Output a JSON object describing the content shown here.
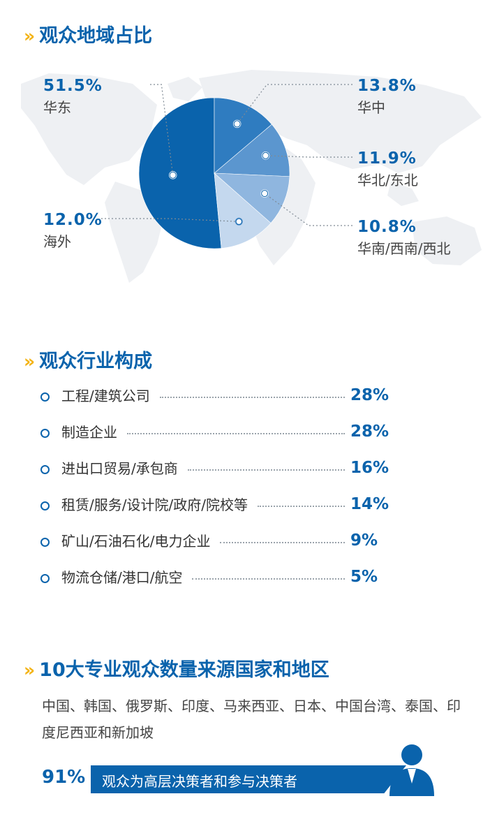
{
  "colors": {
    "primary": "#0a63ac",
    "accent": "#f3b314",
    "map": "#eef0f3"
  },
  "sections": {
    "region": {
      "chevron": "»",
      "title": "观众地域占比"
    },
    "industry": {
      "chevron": "»",
      "title": "观众行业构成"
    },
    "countries": {
      "chevron": "»",
      "title": "10大专业观众数量来源国家和地区"
    }
  },
  "chart_data": [
    {
      "type": "pie",
      "slices": [
        {
          "label": "华东",
          "value": 51.5,
          "display": "51.5%",
          "color": "#0a63ac"
        },
        {
          "label": "华中",
          "value": 13.8,
          "display": "13.8%",
          "color": "#2f7cc0"
        },
        {
          "label": "华北/东北",
          "value": 11.9,
          "display": "11.9%",
          "color": "#5b96cf"
        },
        {
          "label": "华南/西南/西北",
          "value": 10.8,
          "display": "10.8%",
          "color": "#8fb6df"
        },
        {
          "label": "海外",
          "value": 12.0,
          "display": "12.0%",
          "color": "#c4d8ee"
        }
      ]
    },
    {
      "type": "table",
      "rows": [
        {
          "label": "工程/建筑公司",
          "value": 28,
          "display": "28%"
        },
        {
          "label": "制造企业",
          "value": 28,
          "display": "28%"
        },
        {
          "label": "进出口贸易/承包商",
          "value": 16,
          "display": "16%"
        },
        {
          "label": "租赁/服务/设计院/政府/院校等",
          "value": 14,
          "display": "14%"
        },
        {
          "label": "矿山/石油石化/电力企业",
          "value": 9,
          "display": "9%"
        },
        {
          "label": "物流仓储/港口/航空",
          "value": 5,
          "display": "5%"
        }
      ]
    }
  ],
  "countries_text": "中国、韩国、俄罗斯、印度、马来西亚、日本、中国台湾、泰国、印度尼西亚和新加坡",
  "decision_makers": {
    "percent": "91%",
    "text": "观众为高层决策者和参与决策者",
    "icon": "person-icon"
  }
}
